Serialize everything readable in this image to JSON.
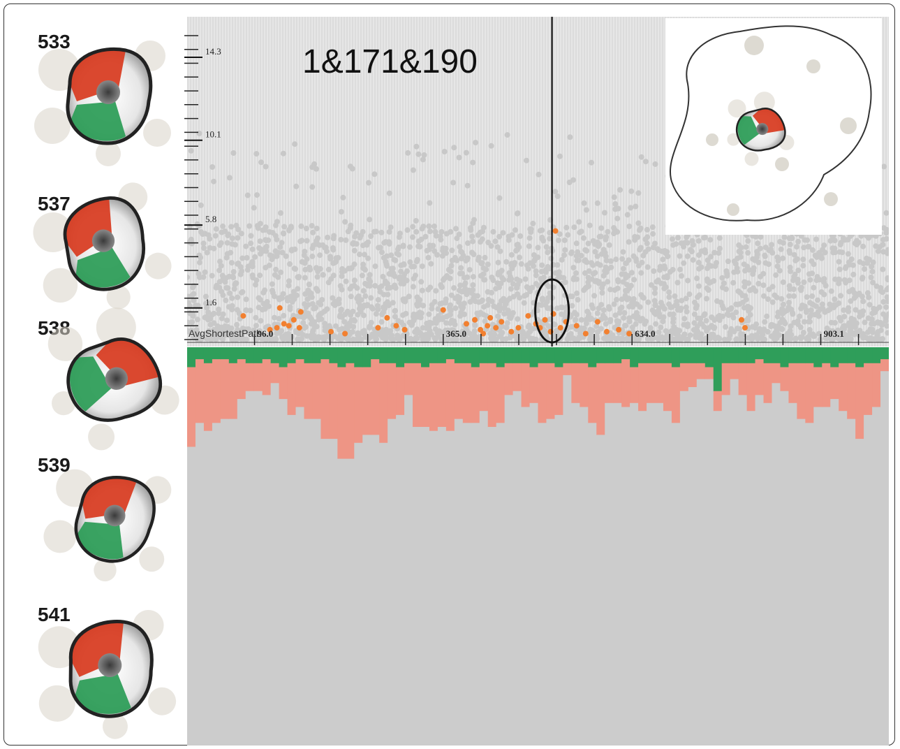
{
  "frames": [
    {
      "label": "533"
    },
    {
      "label": "537"
    },
    {
      "label": "538"
    },
    {
      "label": "539"
    },
    {
      "label": "541"
    }
  ],
  "colors": {
    "red": "#d83a1e",
    "green": "#2f9e5a",
    "salmon": "#ee9585",
    "gray": "#cccccc",
    "scatter_gray": "#c8c8c8",
    "highlight": "#f28030",
    "plot_bg": "#e4e4e4"
  },
  "chart_data": {
    "type": "scatter",
    "title": "1&171&190",
    "xlabel": "AvgShortestPath",
    "y_ticks": [
      "14.3",
      "10.1",
      "5.8",
      "1.6"
    ],
    "x_ticks": [
      "96.0",
      "365.0",
      "634.0",
      "903.1"
    ],
    "xlim": [
      0,
      1000
    ],
    "ylim": [
      0,
      16
    ],
    "selected_x": 520,
    "highlight_points": [
      [
        80,
        1.2
      ],
      [
        118,
        0.5
      ],
      [
        128,
        0.6
      ],
      [
        132,
        1.6
      ],
      [
        138,
        0.8
      ],
      [
        145,
        0.7
      ],
      [
        152,
        1.0
      ],
      [
        160,
        0.6
      ],
      [
        162,
        1.4
      ],
      [
        205,
        0.4
      ],
      [
        225,
        0.3
      ],
      [
        272,
        0.6
      ],
      [
        285,
        1.1
      ],
      [
        298,
        0.7
      ],
      [
        310,
        0.5
      ],
      [
        365,
        1.5
      ],
      [
        398,
        0.8
      ],
      [
        410,
        1.0
      ],
      [
        418,
        0.5
      ],
      [
        422,
        0.3
      ],
      [
        428,
        0.7
      ],
      [
        432,
        1.1
      ],
      [
        440,
        0.6
      ],
      [
        448,
        0.9
      ],
      [
        462,
        0.4
      ],
      [
        472,
        0.6
      ],
      [
        486,
        1.2
      ],
      [
        497,
        0.8
      ],
      [
        503,
        0.6
      ],
      [
        510,
        1.0
      ],
      [
        518,
        0.4
      ],
      [
        522,
        1.3
      ],
      [
        525,
        5.5
      ],
      [
        532,
        0.6
      ],
      [
        540,
        0.9
      ],
      [
        555,
        0.7
      ],
      [
        568,
        0.3
      ],
      [
        585,
        0.9
      ],
      [
        598,
        0.4
      ],
      [
        615,
        0.5
      ],
      [
        630,
        0.3
      ],
      [
        790,
        1.0
      ],
      [
        795,
        0.6
      ]
    ],
    "stacked_bars": {
      "bins": 84,
      "y_range": [
        0,
        1
      ],
      "series": [
        {
          "name": "green",
          "values": [
            0.05,
            0.03,
            0.04,
            0.03,
            0.03,
            0.04,
            0.03,
            0.04,
            0.04,
            0.03,
            0.04,
            0.05,
            0.04,
            0.03,
            0.04,
            0.04,
            0.03,
            0.04,
            0.05,
            0.04,
            0.05,
            0.05,
            0.03,
            0.04,
            0.04,
            0.05,
            0.04,
            0.04,
            0.05,
            0.04,
            0.04,
            0.03,
            0.04,
            0.04,
            0.05,
            0.04,
            0.04,
            0.05,
            0.04,
            0.04,
            0.04,
            0.05,
            0.04,
            0.04,
            0.05,
            0.04,
            0.04,
            0.04,
            0.05,
            0.04,
            0.04,
            0.04,
            0.03,
            0.05,
            0.04,
            0.04,
            0.04,
            0.04,
            0.05,
            0.04,
            0.04,
            0.04,
            0.05,
            0.11,
            0.04,
            0.04,
            0.04,
            0.04,
            0.03,
            0.04,
            0.04,
            0.05,
            0.04,
            0.04,
            0.04,
            0.05,
            0.04,
            0.05,
            0.04,
            0.04,
            0.05,
            0.04,
            0.04,
            0.03
          ]
        },
        {
          "name": "salmon",
          "values": [
            0.2,
            0.16,
            0.17,
            0.16,
            0.15,
            0.14,
            0.1,
            0.07,
            0.07,
            0.09,
            0.05,
            0.08,
            0.13,
            0.12,
            0.14,
            0.14,
            0.2,
            0.19,
            0.23,
            0.24,
            0.19,
            0.17,
            0.19,
            0.2,
            0.14,
            0.12,
            0.08,
            0.16,
            0.15,
            0.17,
            0.16,
            0.18,
            0.14,
            0.15,
            0.14,
            0.12,
            0.16,
            0.14,
            0.08,
            0.07,
            0.11,
            0.09,
            0.15,
            0.14,
            0.12,
            0.03,
            0.1,
            0.11,
            0.14,
            0.18,
            0.1,
            0.1,
            0.12,
            0.09,
            0.12,
            0.1,
            0.1,
            0.12,
            0.14,
            0.07,
            0.06,
            0.04,
            0.03,
            0.05,
            0.08,
            0.04,
            0.08,
            0.12,
            0.09,
            0.1,
            0.05,
            0.06,
            0.1,
            0.14,
            0.15,
            0.1,
            0.11,
            0.08,
            0.12,
            0.14,
            0.18,
            0.13,
            0.11,
            0.03
          ]
        },
        {
          "name": "gray",
          "values": [
            0.75,
            0.81,
            0.79,
            0.81,
            0.82,
            0.82,
            0.87,
            0.89,
            0.89,
            0.88,
            0.91,
            0.87,
            0.83,
            0.85,
            0.82,
            0.82,
            0.77,
            0.77,
            0.72,
            0.72,
            0.76,
            0.78,
            0.78,
            0.76,
            0.82,
            0.83,
            0.88,
            0.8,
            0.8,
            0.79,
            0.8,
            0.79,
            0.82,
            0.81,
            0.81,
            0.84,
            0.8,
            0.81,
            0.88,
            0.89,
            0.85,
            0.86,
            0.81,
            0.82,
            0.83,
            0.93,
            0.86,
            0.85,
            0.81,
            0.78,
            0.86,
            0.86,
            0.85,
            0.86,
            0.84,
            0.86,
            0.86,
            0.84,
            0.81,
            0.89,
            0.9,
            0.92,
            0.92,
            0.84,
            0.88,
            0.92,
            0.88,
            0.84,
            0.88,
            0.86,
            0.91,
            0.89,
            0.86,
            0.82,
            0.81,
            0.85,
            0.85,
            0.87,
            0.84,
            0.82,
            0.77,
            0.83,
            0.85,
            0.94
          ]
        }
      ]
    }
  }
}
